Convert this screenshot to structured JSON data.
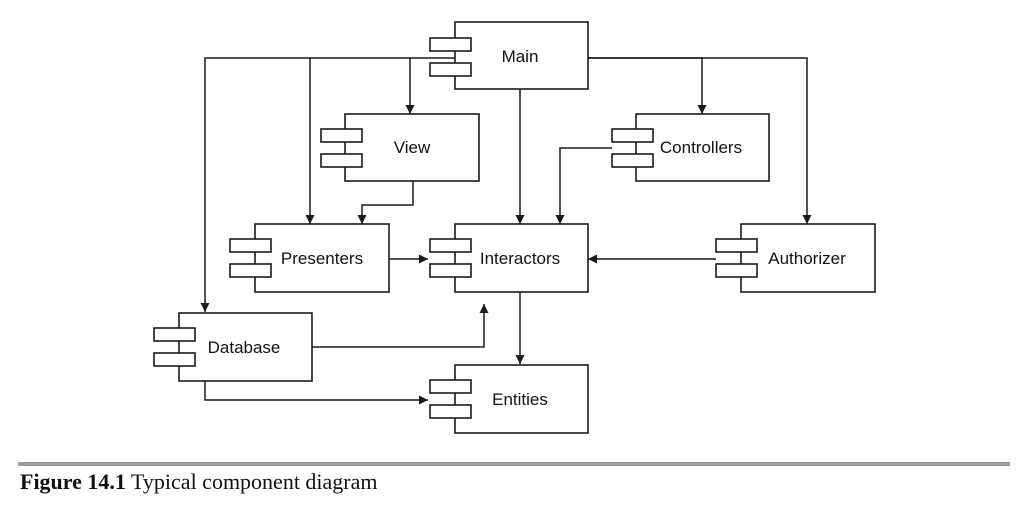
{
  "components": {
    "main": "Main",
    "view": "View",
    "controllers": "Controllers",
    "presenters": "Presenters",
    "interactors": "Interactors",
    "authorizer": "Authorizer",
    "database": "Database",
    "entities": "Entities"
  },
  "caption": {
    "number": "Figure 14.1",
    "text": " Typical component diagram"
  },
  "colors": {
    "line": "#1a1a1a",
    "rule": "#9a9a9a"
  }
}
